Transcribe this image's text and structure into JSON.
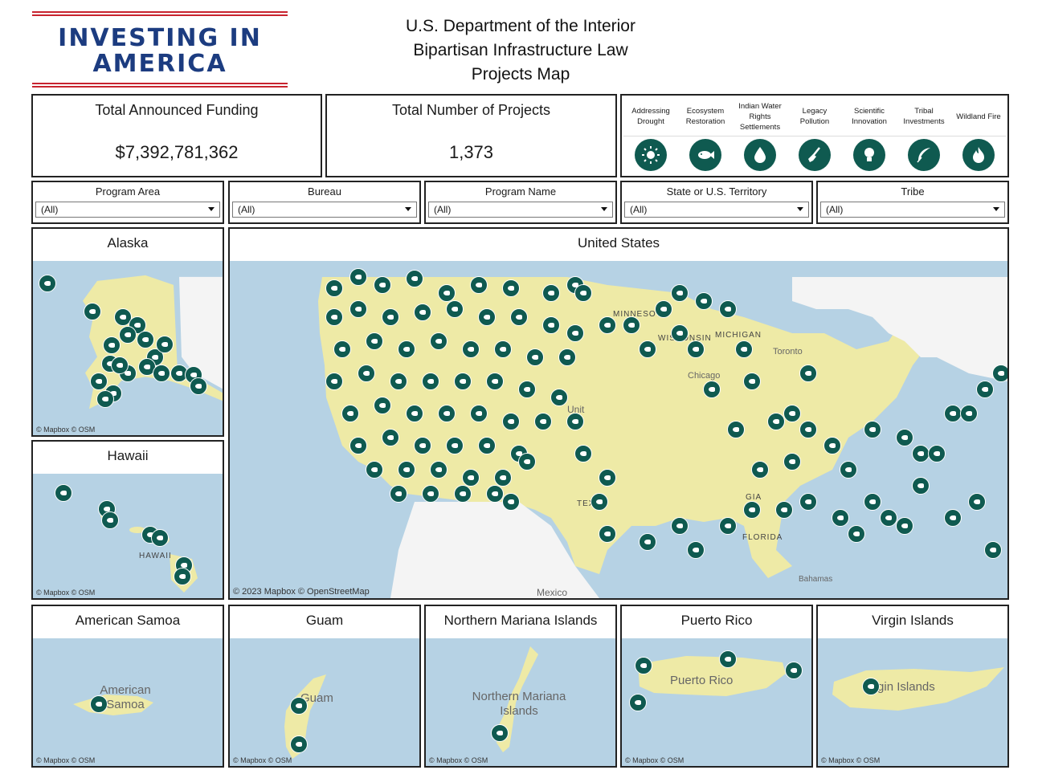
{
  "logo": {
    "line1": "INVESTING IN",
    "line2": "AMERICA"
  },
  "title": {
    "line1": "U.S. Department of the Interior",
    "line2": "Bipartisan Infrastructure Law",
    "line3": "Projects Map"
  },
  "kpis": {
    "funding_label": "Total Announced Funding",
    "funding_value": "$7,392,781,362",
    "projects_label": "Total Number of  Projects",
    "projects_value": "1,373"
  },
  "categories": [
    {
      "label": "Addressing Drought",
      "icon": "sun-icon"
    },
    {
      "label": "Ecosystem Restoration",
      "icon": "fish-icon"
    },
    {
      "label": "Indian Water Rights Settlements",
      "icon": "water-drop-icon"
    },
    {
      "label": "Legacy Pollution",
      "icon": "shovel-icon"
    },
    {
      "label": "Scientific Innovation",
      "icon": "lightbulb-icon"
    },
    {
      "label": "Tribal Investments",
      "icon": "feather-icon"
    },
    {
      "label": "Wildland Fire",
      "icon": "flame-icon"
    }
  ],
  "filters": [
    {
      "label": "Program Area",
      "value": "(All)"
    },
    {
      "label": "Bureau",
      "value": "(All)"
    },
    {
      "label": "Program Name",
      "value": "(All)"
    },
    {
      "label": "State or U.S. Territory",
      "value": "(All)"
    },
    {
      "label": "Tribe",
      "value": "(All)"
    }
  ],
  "maps": {
    "alaska": {
      "title": "Alaska",
      "attribution": "© Mapbox  © OSM"
    },
    "hawaii": {
      "title": "Hawaii",
      "attribution": "© Mapbox  © OSM",
      "label": "HAWAII"
    },
    "us": {
      "title": "United States",
      "attribution": "© 2023 Mapbox  © OpenStreetMap",
      "labels": [
        "MINNESOTA",
        "WISCONSIN",
        "MICHIGAN",
        "Toronto",
        "Chicago",
        "TEXAS",
        "FLORIDA",
        "Bahamas",
        "Mexico",
        "GIA",
        "Unit"
      ]
    },
    "samoa": {
      "title": "American Samoa",
      "attribution": "© Mapbox  © OSM",
      "label": "American Samoa"
    },
    "guam": {
      "title": "Guam",
      "attribution": "© Mapbox  © OSM",
      "label": "Guam"
    },
    "nmi": {
      "title": "Northern Mariana Islands",
      "attribution": "© Mapbox  © OSM",
      "label": "Northern Mariana Islands"
    },
    "pr": {
      "title": "Puerto Rico",
      "attribution": "© Mapbox  © OSM",
      "label": "Puerto Rico"
    },
    "vi": {
      "title": "Virgin Islands",
      "attribution": "© Mapbox  © OSM",
      "label": "Virgin Islands"
    }
  },
  "colors": {
    "marker": "#0f5a50",
    "land": "#eeeaa6",
    "water": "#b6d2e4",
    "logo_blue": "#1c3c80",
    "logo_red": "#c8242f"
  }
}
